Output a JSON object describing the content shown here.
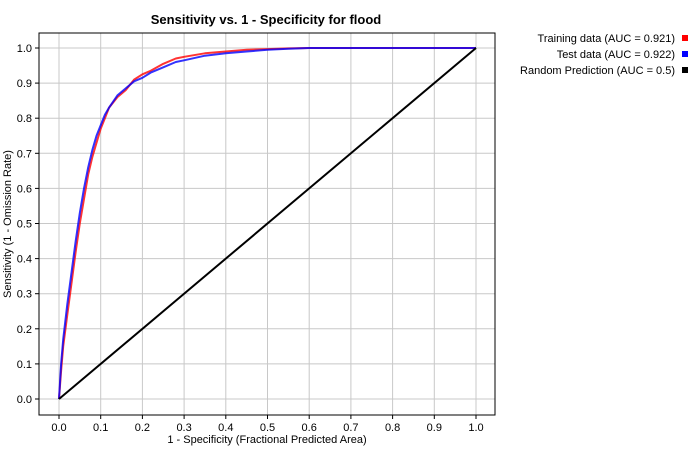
{
  "chart_data": {
    "type": "line",
    "title": "Sensitivity vs. 1 - Specificity for flood",
    "xlabel": "1 - Specificity  (Fractional Predicted Area)",
    "ylabel": "Sensitivity  (1 - Omission Rate)",
    "xlim": [
      0,
      1
    ],
    "ylim": [
      0,
      1
    ],
    "grid": true,
    "x_ticks": [
      "0.0",
      "0.1",
      "0.2",
      "0.3",
      "0.4",
      "0.5",
      "0.6",
      "0.7",
      "0.8",
      "0.9",
      "1.0"
    ],
    "y_ticks": [
      "0.0",
      "0.1",
      "0.2",
      "0.3",
      "0.4",
      "0.5",
      "0.6",
      "0.7",
      "0.8",
      "0.9",
      "1.0"
    ],
    "legend_position": "top-right, outside plot",
    "series": [
      {
        "name": "Training data (AUC = 0.921)",
        "color": "#ff0000",
        "x": [
          0,
          0.005,
          0.01,
          0.02,
          0.03,
          0.04,
          0.05,
          0.06,
          0.07,
          0.08,
          0.09,
          0.1,
          0.11,
          0.12,
          0.14,
          0.16,
          0.18,
          0.2,
          0.22,
          0.25,
          0.28,
          0.3,
          0.35,
          0.4,
          0.45,
          0.5,
          0.55,
          0.6,
          0.7,
          0.8,
          0.9,
          1.0
        ],
        "y": [
          0,
          0.08,
          0.15,
          0.24,
          0.33,
          0.42,
          0.5,
          0.57,
          0.64,
          0.69,
          0.73,
          0.77,
          0.8,
          0.83,
          0.86,
          0.88,
          0.91,
          0.925,
          0.935,
          0.955,
          0.97,
          0.975,
          0.985,
          0.99,
          0.995,
          0.997,
          0.999,
          1.0,
          1.0,
          1.0,
          1.0,
          1.0
        ]
      },
      {
        "name": "Test data (AUC = 0.922)",
        "color": "#0000ff",
        "x": [
          0,
          0.005,
          0.01,
          0.02,
          0.03,
          0.04,
          0.05,
          0.06,
          0.07,
          0.08,
          0.09,
          0.1,
          0.11,
          0.12,
          0.14,
          0.16,
          0.18,
          0.2,
          0.22,
          0.25,
          0.28,
          0.3,
          0.35,
          0.4,
          0.45,
          0.5,
          0.55,
          0.6,
          0.7,
          0.8,
          0.9,
          1.0
        ],
        "y": [
          0,
          0.1,
          0.17,
          0.27,
          0.36,
          0.45,
          0.53,
          0.6,
          0.66,
          0.71,
          0.75,
          0.78,
          0.81,
          0.83,
          0.865,
          0.885,
          0.905,
          0.915,
          0.93,
          0.945,
          0.96,
          0.965,
          0.978,
          0.985,
          0.99,
          0.995,
          0.998,
          1.0,
          1.0,
          1.0,
          1.0,
          1.0
        ]
      },
      {
        "name": "Random Prediction (AUC = 0.5)",
        "color": "#000000",
        "x": [
          0,
          1
        ],
        "y": [
          0,
          1
        ]
      }
    ]
  }
}
